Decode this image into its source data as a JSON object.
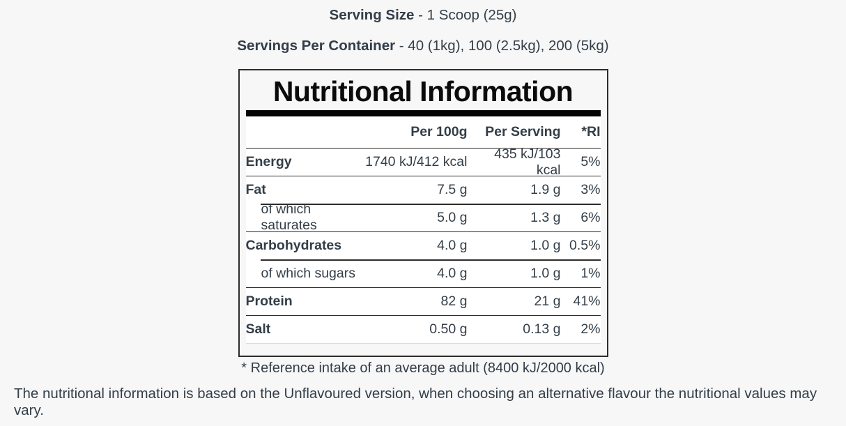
{
  "colors": {
    "background": "#f7f7f8",
    "text": "#333e48",
    "title": "#0b0b0b",
    "rule_dark": "#2c2c2c",
    "rule_light": "#d9dcde",
    "table_background": "#ffffff",
    "separator_bar": "#050505"
  },
  "header": {
    "serving_size_label": "Serving Size",
    "serving_size_value": " - 1 Scoop (25g)",
    "servings_label": "Servings Per Container",
    "servings_value": " - 40 (1kg), 100 (2.5kg), 200 (5kg)"
  },
  "label": {
    "title": "Nutritional Information",
    "columns": {
      "per_100g": "Per 100g",
      "per_serving": "Per Serving",
      "ri": "*RI"
    },
    "rows": [
      {
        "name": "Energy",
        "per_100g": "1740 kJ/412 kcal",
        "per_serving": "435 kJ/103 kcal",
        "ri": "5%"
      },
      {
        "name": "Fat",
        "per_100g": "7.5 g",
        "per_serving": "1.9 g",
        "ri": "3%"
      },
      {
        "name": "of which saturates",
        "per_100g": "5.0 g",
        "per_serving": "1.3 g",
        "ri": "6%"
      },
      {
        "name": "Carbohydrates",
        "per_100g": "4.0 g",
        "per_serving": "1.0 g",
        "ri": "0.5%"
      },
      {
        "name": "of which sugars",
        "per_100g": "4.0 g",
        "per_serving": "1.0 g",
        "ri": "1%"
      },
      {
        "name": "Protein",
        "per_100g": "82 g",
        "per_serving": "21 g",
        "ri": "41%"
      },
      {
        "name": "Salt",
        "per_100g": "0.50 g",
        "per_serving": "0.13 g",
        "ri": "2%"
      }
    ],
    "footnote": "* Reference intake of an average adult (8400 kJ/2000 kcal)"
  },
  "disclaimer": "The nutritional information is based on the Unflavoured version, when choosing an alternative flavour the nutritional values may vary."
}
